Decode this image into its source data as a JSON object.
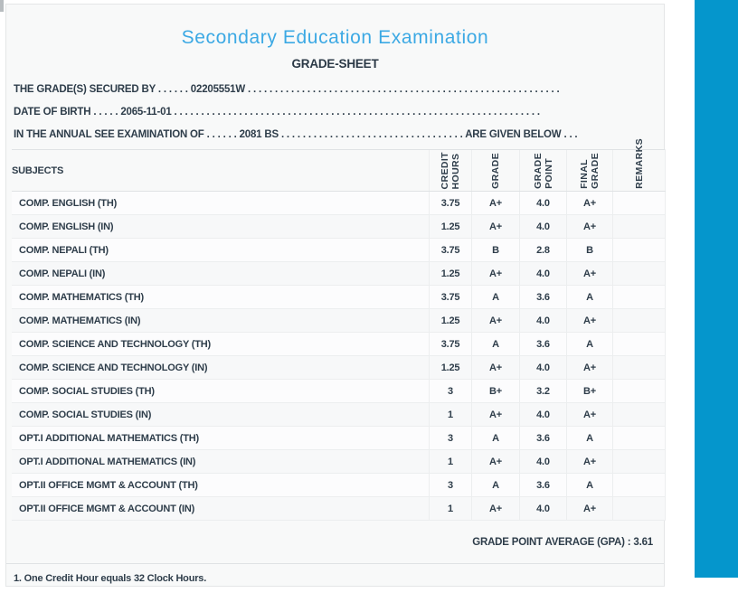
{
  "page": {
    "title": "Secondary Education Examination",
    "subtitle": "GRADE-SHEET"
  },
  "info": {
    "lines": [
      {
        "label": "THE GRADE(S) SECURED BY",
        "d1": ". . . . . .",
        "value": "02205551W",
        "d2": ". . . . . . . . . . . . . . . . . . . . . . . . . . . . . . . . . . . . . . . . . . . . . . . . . . . . . . . . . .",
        "suffix": "",
        "d3": ""
      },
      {
        "label": "DATE OF BIRTH",
        "d1": ". . . . .",
        "value": "2065-11-01",
        "d2": ". . . . . . . . . . . . . . . . . . . . . . . . . . . . . . . . . . . . . . . . . . . . . . . . . . . . . . . . . . . . . . . . . . . .",
        "suffix": "",
        "d3": ""
      },
      {
        "label": "IN THE ANNUAL SEE EXAMINATION OF",
        "d1": ". . . . . .",
        "value": "2081 BS",
        "d2": ". . . . . . . . . . . . . . . . . . . . . . . . . . . . . . . . . .",
        "suffix": "ARE GIVEN BELOW",
        "d3": ". . ."
      }
    ]
  },
  "table": {
    "headers": {
      "subjects": "SUBJECTS",
      "credit_hours": "CREDIT\nHOURS",
      "grade": "GRADE",
      "grade_point": "GRADE\nPOINT",
      "final_grade": "FINAL\nGRADE",
      "remarks": "REMARKS"
    },
    "rows": [
      {
        "subject": "COMP. ENGLISH (TH)",
        "credit": "3.75",
        "grade": "A+",
        "grade_point": "4.0",
        "final_grade": "A+",
        "remarks": ""
      },
      {
        "subject": "COMP. ENGLISH (IN)",
        "credit": "1.25",
        "grade": "A+",
        "grade_point": "4.0",
        "final_grade": "A+",
        "remarks": ""
      },
      {
        "subject": "COMP. NEPALI (TH)",
        "credit": "3.75",
        "grade": "B",
        "grade_point": "2.8",
        "final_grade": "B",
        "remarks": ""
      },
      {
        "subject": "COMP. NEPALI (IN)",
        "credit": "1.25",
        "grade": "A+",
        "grade_point": "4.0",
        "final_grade": "A+",
        "remarks": ""
      },
      {
        "subject": "COMP. MATHEMATICS (TH)",
        "credit": "3.75",
        "grade": "A",
        "grade_point": "3.6",
        "final_grade": "A",
        "remarks": ""
      },
      {
        "subject": "COMP. MATHEMATICS (IN)",
        "credit": "1.25",
        "grade": "A+",
        "grade_point": "4.0",
        "final_grade": "A+",
        "remarks": ""
      },
      {
        "subject": "COMP. SCIENCE AND TECHNOLOGY (TH)",
        "credit": "3.75",
        "grade": "A",
        "grade_point": "3.6",
        "final_grade": "A",
        "remarks": ""
      },
      {
        "subject": "COMP. SCIENCE AND TECHNOLOGY (IN)",
        "credit": "1.25",
        "grade": "A+",
        "grade_point": "4.0",
        "final_grade": "A+",
        "remarks": ""
      },
      {
        "subject": "COMP. SOCIAL STUDIES (TH)",
        "credit": "3",
        "grade": "B+",
        "grade_point": "3.2",
        "final_grade": "B+",
        "remarks": ""
      },
      {
        "subject": "COMP. SOCIAL STUDIES (IN)",
        "credit": "1",
        "grade": "A+",
        "grade_point": "4.0",
        "final_grade": "A+",
        "remarks": ""
      },
      {
        "subject": "OPT.I ADDITIONAL MATHEMATICS (TH)",
        "credit": "3",
        "grade": "A",
        "grade_point": "3.6",
        "final_grade": "A",
        "remarks": ""
      },
      {
        "subject": "OPT.I ADDITIONAL MATHEMATICS (IN)",
        "credit": "1",
        "grade": "A+",
        "grade_point": "4.0",
        "final_grade": "A+",
        "remarks": ""
      },
      {
        "subject": "OPT.II OFFICE MGMT & ACCOUNT (TH)",
        "credit": "3",
        "grade": "A",
        "grade_point": "3.6",
        "final_grade": "A",
        "remarks": ""
      },
      {
        "subject": "OPT.II OFFICE MGMT & ACCOUNT (IN)",
        "credit": "1",
        "grade": "A+",
        "grade_point": "4.0",
        "final_grade": "A+",
        "remarks": ""
      }
    ]
  },
  "summary": {
    "gpa_line": "GRADE POINT AVERAGE (GPA) : 3.61"
  },
  "footnote": "1. One Credit Hour equals 32 Clock Hours.",
  "colors": {
    "accent_cyan": "#0596CC",
    "title_blue": "#3CA9E4",
    "text_dark": "#2E3D4A",
    "sheet_bg": "#F8F9F9"
  }
}
